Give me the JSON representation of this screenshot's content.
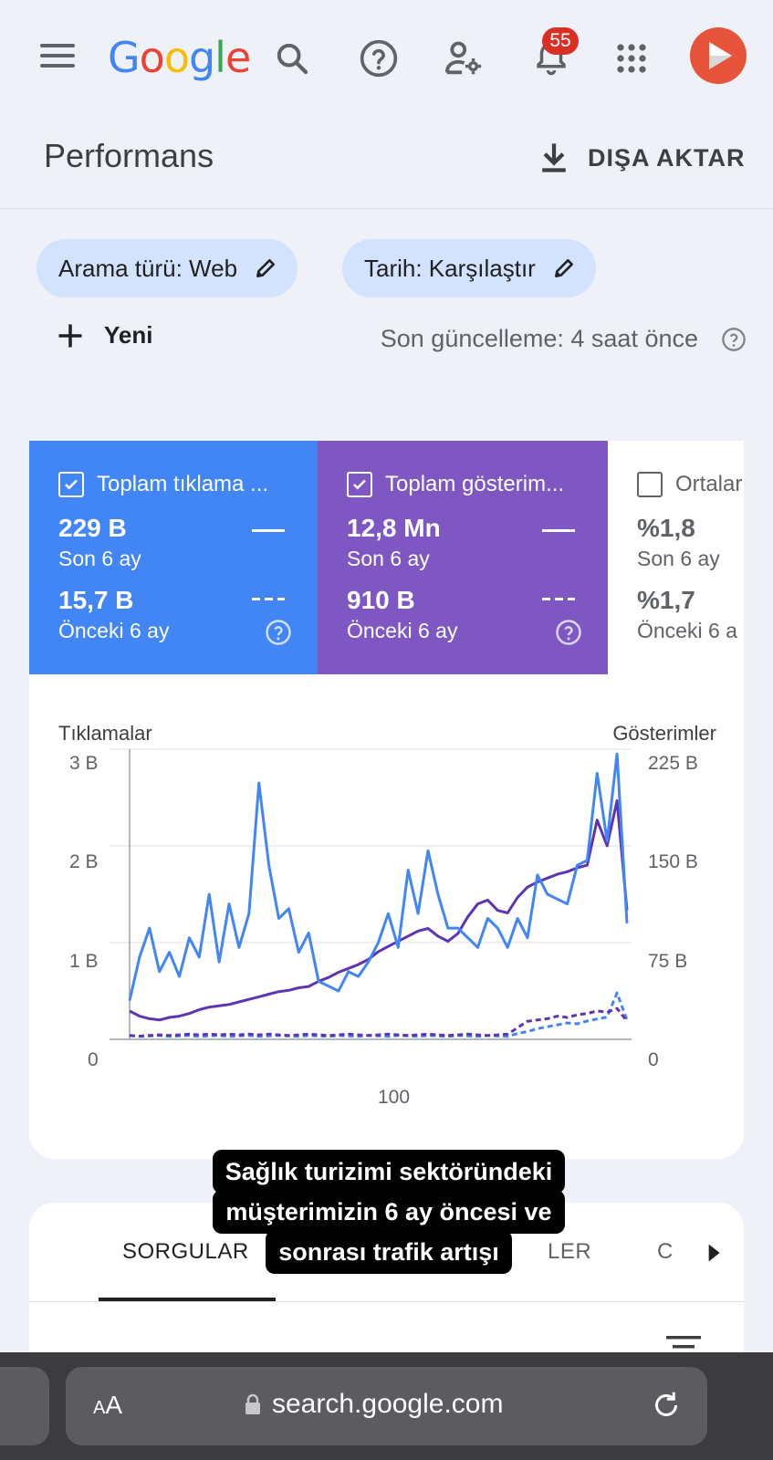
{
  "header": {
    "logo_letters": [
      "G",
      "o",
      "o",
      "g",
      "l",
      "e"
    ],
    "notification_count": "55",
    "icons": [
      "menu-icon",
      "search-icon",
      "help-icon",
      "manage-users-icon",
      "notifications-icon",
      "apps-icon",
      "avatar-icon"
    ]
  },
  "page": {
    "title": "Performans",
    "export_label": "DIŞA AKTAR"
  },
  "filters": {
    "search_type": "Arama türü: Web",
    "date": "Tarih: Karşılaştır",
    "new_label": "Yeni",
    "last_update": "Son güncelleme: 4 saat önce"
  },
  "metrics": [
    {
      "label": "Toplam tıklama ...",
      "current_value": "229 B",
      "current_period": "Son 6 ay",
      "previous_value": "15,7 B",
      "previous_period": "Önceki 6 ay",
      "checked": true,
      "color": "#4285f4"
    },
    {
      "label": "Toplam gösterim...",
      "current_value": "12,8 Mn",
      "current_period": "Son 6 ay",
      "previous_value": "910 B",
      "previous_period": "Önceki 6 ay",
      "checked": true,
      "color": "#7e57c2"
    },
    {
      "label": "Ortalar",
      "current_value": "%1,8",
      "current_period": "Son 6 ay",
      "previous_value": "%1,7",
      "previous_period": "Önceki 6 a",
      "checked": false,
      "color": "#ffffff"
    }
  ],
  "chart_data": {
    "type": "line",
    "left_axis_label": "Tıklamalar",
    "right_axis_label": "Gösterimler",
    "left_ticks": [
      "3 B",
      "2 B",
      "1 B",
      "0"
    ],
    "right_ticks": [
      "225 B",
      "150 B",
      "75 B",
      "0"
    ],
    "x_ticks": [
      "100"
    ],
    "ylim_left": [
      0,
      3000
    ],
    "ylim_right": [
      0,
      225000
    ],
    "x": [
      0,
      4,
      8,
      12,
      16,
      20,
      24,
      28,
      32,
      36,
      40,
      44,
      48,
      52,
      56,
      60,
      64,
      68,
      72,
      76,
      80,
      84,
      88,
      92,
      96,
      100,
      104,
      108,
      112,
      116,
      120,
      124,
      128,
      132,
      136,
      140,
      144,
      148,
      152,
      156,
      160,
      164,
      168,
      172,
      176,
      180,
      184,
      188,
      192,
      196,
      200
    ],
    "series": [
      {
        "name": "Toplam tıklama",
        "period": "Son 6 ay",
        "axis": "left",
        "color": "#4285f4",
        "dash": false,
        "values": [
          400,
          850,
          1150,
          700,
          900,
          650,
          1050,
          850,
          1500,
          800,
          1400,
          950,
          1300,
          2650,
          1800,
          1250,
          1350,
          900,
          1100,
          600,
          550,
          500,
          700,
          650,
          800,
          1000,
          1300,
          950,
          1750,
          1300,
          1950,
          1500,
          1150,
          1150,
          1050,
          950,
          1250,
          1150,
          950,
          1250,
          1050,
          1700,
          1500,
          1450,
          1400,
          1800,
          1850,
          2750,
          2050,
          2950,
          1200
        ]
      },
      {
        "name": "Toplam gösterim",
        "period": "Son 6 ay",
        "axis": "right",
        "color": "#5e35b1",
        "dash": false,
        "values": [
          22000,
          18000,
          16000,
          15000,
          17000,
          18000,
          20000,
          23000,
          25000,
          26000,
          27000,
          29000,
          31000,
          33000,
          35000,
          37000,
          38000,
          40000,
          41000,
          45000,
          48000,
          52000,
          55000,
          58000,
          62000,
          68000,
          72000,
          76000,
          80000,
          84000,
          86000,
          80000,
          76000,
          82000,
          95000,
          105000,
          108000,
          100000,
          98000,
          110000,
          118000,
          122000,
          125000,
          128000,
          130000,
          133000,
          135000,
          170000,
          150000,
          185000,
          100000
        ]
      },
      {
        "name": "Toplam tıklama",
        "period": "Önceki 6 ay",
        "axis": "left",
        "color": "#4285f4",
        "dash": true,
        "values": [
          40,
          30,
          35,
          40,
          30,
          35,
          40,
          30,
          35,
          40,
          30,
          35,
          40,
          30,
          35,
          40,
          35,
          30,
          40,
          35,
          30,
          40,
          35,
          30,
          40,
          35,
          30,
          40,
          35,
          30,
          40,
          35,
          30,
          40,
          35,
          30,
          40,
          35,
          30,
          60,
          80,
          110,
          130,
          150,
          170,
          160,
          190,
          210,
          230,
          480,
          200
        ]
      },
      {
        "name": "Toplam gösterim",
        "period": "Önceki 6 ay",
        "axis": "right",
        "color": "#5e35b1",
        "dash": true,
        "values": [
          3000,
          2500,
          3000,
          3500,
          3000,
          3500,
          4000,
          3500,
          4000,
          3500,
          4000,
          3500,
          4000,
          3500,
          4000,
          3500,
          3000,
          3500,
          4000,
          3500,
          3000,
          3500,
          4000,
          3500,
          3000,
          3500,
          4000,
          3500,
          3000,
          3500,
          4000,
          3500,
          3000,
          3500,
          4000,
          3500,
          3000,
          3500,
          4000,
          9000,
          14000,
          15000,
          16000,
          18000,
          17000,
          19000,
          20000,
          22000,
          21000,
          24000,
          14000
        ]
      }
    ]
  },
  "tabs": {
    "items": [
      "SORGULAR",
      "LER",
      "C"
    ]
  },
  "caption": {
    "lines": [
      "Sağlık turizimi sektöründeki",
      "müşterimizin 6 ay öncesi ve",
      "sonrası trafik artışı"
    ]
  },
  "browser": {
    "text_size_label_small": "A",
    "text_size_label_big": "A",
    "url": "search.google.com"
  }
}
